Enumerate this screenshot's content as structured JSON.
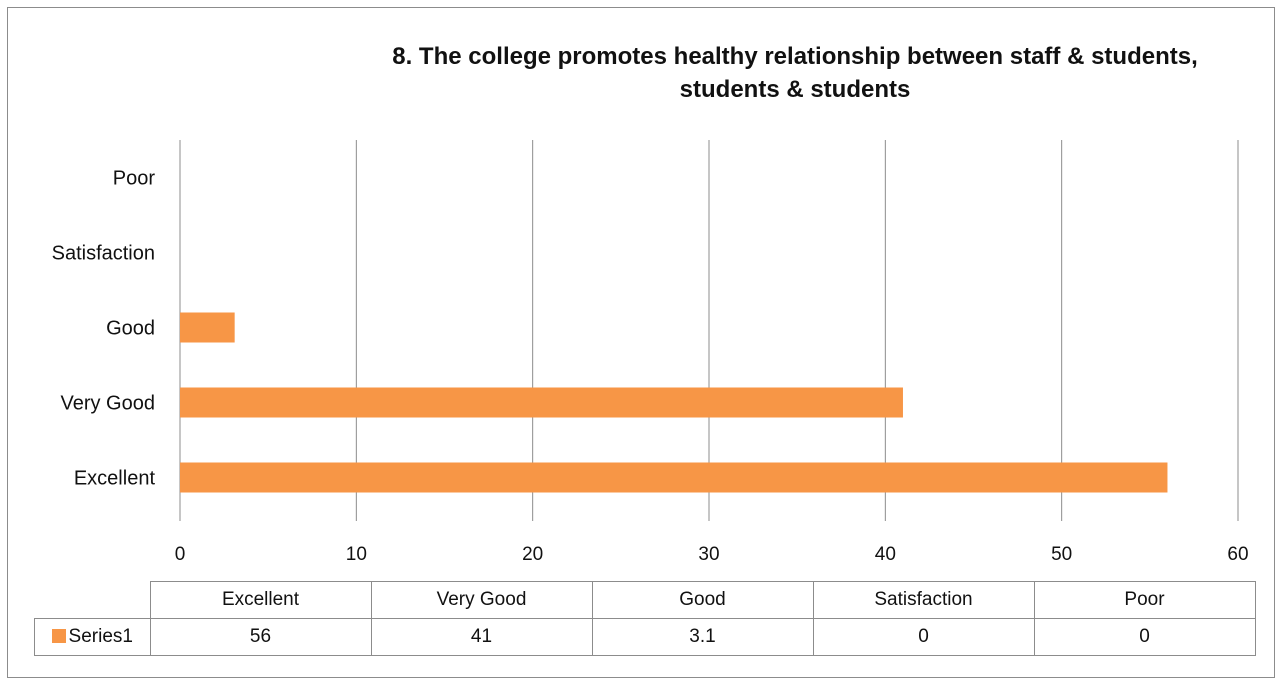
{
  "chart_data": {
    "type": "bar",
    "orientation": "horizontal",
    "title_lines": [
      "8. The college promotes healthy relationship between staff & students,",
      "students & students"
    ],
    "categories": [
      "Excellent",
      "Very Good",
      "Good",
      "Satisfaction",
      "Poor"
    ],
    "series": [
      {
        "name": "Series1",
        "values": [
          56,
          41,
          3.1,
          0,
          0
        ],
        "value_labels": [
          "56",
          "41",
          "3.1",
          "0",
          "0"
        ],
        "color": "#f79646"
      }
    ],
    "xlim": [
      0,
      60
    ],
    "x_ticks": [
      0,
      10,
      20,
      30,
      40,
      50,
      60
    ],
    "x_tick_labels": [
      "0",
      "10",
      "20",
      "30",
      "40",
      "50",
      "60"
    ],
    "grid": "vertical",
    "gridline_color": "#8c8c8c",
    "data_table": true
  }
}
